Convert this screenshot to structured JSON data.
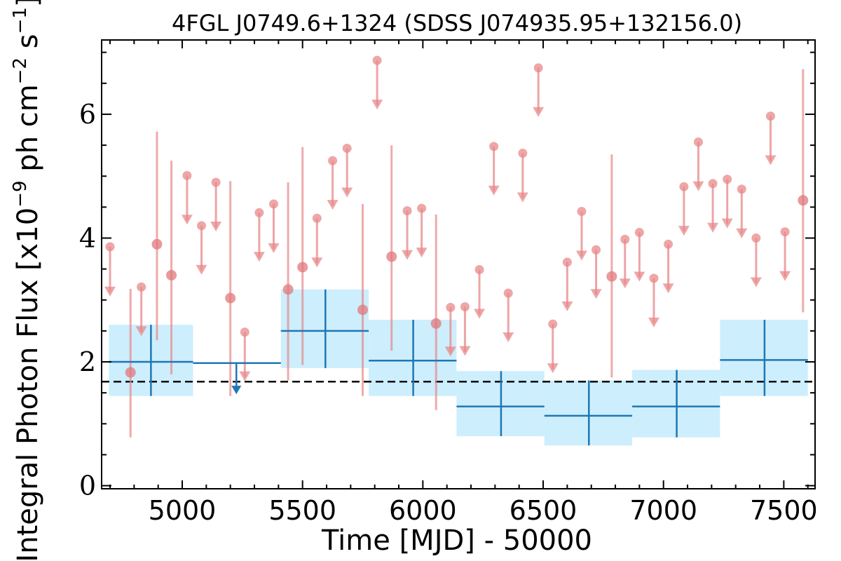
{
  "chart_data": {
    "type": "scatter",
    "title": "4FGL J0749.6+1324 (SDSS J074935.95+132156.0)",
    "xlabel": "Time [MJD] - 50000",
    "ylabel_main": "Integral Photon Flux [x10",
    "ylabel_exp1": "−9",
    "ylabel_mid": " ph cm",
    "ylabel_exp2": "−2",
    "ylabel_mid2": " s",
    "ylabel_exp3": "−1",
    "ylabel_end": "]",
    "xlim": [
      4665,
      7630
    ],
    "ylim": [
      -0.05,
      7.2
    ],
    "xticks": [
      5000,
      5500,
      6000,
      6500,
      7000,
      7500
    ],
    "yticks": [
      0,
      2,
      4,
      6
    ],
    "grid": false,
    "colors": {
      "binned": "#1f77b4",
      "band": "#cdeefc",
      "short": "#e8888a",
      "reference": "#000000"
    },
    "reference_line": {
      "y": 1.68,
      "style": "dashed"
    },
    "series": [
      {
        "role": "long-bins-detections",
        "points": [
          {
            "x": 4870,
            "x0": 4695,
            "x1": 5045,
            "y": 2.0,
            "ylo": 1.45,
            "yhi": 2.6
          },
          {
            "x": 5595,
            "x0": 5410,
            "x1": 5775,
            "y": 2.5,
            "ylo": 1.9,
            "yhi": 3.17
          },
          {
            "x": 5960,
            "x0": 5775,
            "x1": 6140,
            "y": 2.02,
            "ylo": 1.45,
            "yhi": 2.68
          },
          {
            "x": 6325,
            "x0": 6140,
            "x1": 6505,
            "y": 1.28,
            "ylo": 0.8,
            "yhi": 1.85
          },
          {
            "x": 6690,
            "x0": 6505,
            "x1": 6870,
            "y": 1.13,
            "ylo": 0.65,
            "yhi": 1.7
          },
          {
            "x": 7055,
            "x0": 6870,
            "x1": 7235,
            "y": 1.28,
            "ylo": 0.78,
            "yhi": 1.87
          },
          {
            "x": 7420,
            "x0": 7235,
            "x1": 7600,
            "y": 2.03,
            "ylo": 1.45,
            "yhi": 2.68
          }
        ]
      },
      {
        "role": "long-bins-upper-limits",
        "points": [
          {
            "x": 5225,
            "x0": 5045,
            "x1": 5410,
            "y": 1.98,
            "arrow_to": 1.5
          }
        ]
      },
      {
        "role": "short-bins-detections",
        "points": [
          {
            "x": 4785,
            "y": 1.83,
            "ylo": 0.78,
            "yhi": 3.18
          },
          {
            "x": 4895,
            "y": 3.9,
            "ylo": 2.35,
            "yhi": 5.72
          },
          {
            "x": 4955,
            "y": 3.4,
            "ylo": 1.8,
            "yhi": 5.25
          },
          {
            "x": 5200,
            "y": 3.03,
            "ylo": 1.45,
            "yhi": 4.92
          },
          {
            "x": 5440,
            "y": 3.17,
            "ylo": 1.7,
            "yhi": 4.9
          },
          {
            "x": 5500,
            "y": 3.53,
            "ylo": 1.95,
            "yhi": 5.47
          },
          {
            "x": 5750,
            "y": 2.84,
            "ylo": 1.45,
            "yhi": 4.55
          },
          {
            "x": 5870,
            "y": 3.7,
            "ylo": 2.18,
            "yhi": 5.5
          },
          {
            "x": 6055,
            "y": 2.62,
            "ylo": 1.22,
            "yhi": 4.38
          },
          {
            "x": 6785,
            "y": 3.38,
            "ylo": 1.75,
            "yhi": 5.35
          },
          {
            "x": 7580,
            "y": 4.61,
            "ylo": 2.8,
            "yhi": 6.73
          }
        ]
      },
      {
        "role": "short-bins-upper-limits",
        "points": [
          {
            "x": 4700,
            "y": 3.86,
            "arrow_to": 3.08
          },
          {
            "x": 4830,
            "y": 3.21,
            "arrow_to": 2.44
          },
          {
            "x": 5020,
            "y": 5.01,
            "arrow_to": 4.24
          },
          {
            "x": 5080,
            "y": 4.2,
            "arrow_to": 3.43
          },
          {
            "x": 5140,
            "y": 4.9,
            "arrow_to": 4.13
          },
          {
            "x": 5260,
            "y": 2.48,
            "arrow_to": 1.71
          },
          {
            "x": 5320,
            "y": 4.41,
            "arrow_to": 3.64
          },
          {
            "x": 5380,
            "y": 4.55,
            "arrow_to": 3.78
          },
          {
            "x": 5560,
            "y": 4.32,
            "arrow_to": 3.55
          },
          {
            "x": 5625,
            "y": 5.25,
            "arrow_to": 4.48
          },
          {
            "x": 5685,
            "y": 5.45,
            "arrow_to": 4.68
          },
          {
            "x": 5810,
            "y": 6.87,
            "arrow_to": 6.1
          },
          {
            "x": 5935,
            "y": 4.44,
            "arrow_to": 3.67
          },
          {
            "x": 5995,
            "y": 4.48,
            "arrow_to": 3.71
          },
          {
            "x": 6115,
            "y": 2.88,
            "arrow_to": 2.11
          },
          {
            "x": 6175,
            "y": 2.89,
            "arrow_to": 2.12
          },
          {
            "x": 6235,
            "y": 3.49,
            "arrow_to": 2.72
          },
          {
            "x": 6295,
            "y": 5.48,
            "arrow_to": 4.71
          },
          {
            "x": 6355,
            "y": 3.11,
            "arrow_to": 2.34
          },
          {
            "x": 6415,
            "y": 5.37,
            "arrow_to": 4.6
          },
          {
            "x": 6480,
            "y": 6.75,
            "arrow_to": 5.98
          },
          {
            "x": 6540,
            "y": 2.61,
            "arrow_to": 1.84
          },
          {
            "x": 6600,
            "y": 3.61,
            "arrow_to": 2.84
          },
          {
            "x": 6660,
            "y": 4.43,
            "arrow_to": 3.66
          },
          {
            "x": 6720,
            "y": 3.81,
            "arrow_to": 3.04
          },
          {
            "x": 6840,
            "y": 3.98,
            "arrow_to": 3.21
          },
          {
            "x": 6900,
            "y": 4.09,
            "arrow_to": 3.32
          },
          {
            "x": 6960,
            "y": 3.35,
            "arrow_to": 2.58
          },
          {
            "x": 7020,
            "y": 3.9,
            "arrow_to": 3.13
          },
          {
            "x": 7085,
            "y": 4.83,
            "arrow_to": 4.06
          },
          {
            "x": 7145,
            "y": 5.55,
            "arrow_to": 4.78
          },
          {
            "x": 7205,
            "y": 4.88,
            "arrow_to": 4.11
          },
          {
            "x": 7265,
            "y": 4.95,
            "arrow_to": 4.18
          },
          {
            "x": 7325,
            "y": 4.79,
            "arrow_to": 4.02
          },
          {
            "x": 7385,
            "y": 4.0,
            "arrow_to": 3.23
          },
          {
            "x": 7445,
            "y": 5.97,
            "arrow_to": 5.2
          },
          {
            "x": 7505,
            "y": 4.1,
            "arrow_to": 3.33
          }
        ]
      }
    ]
  }
}
